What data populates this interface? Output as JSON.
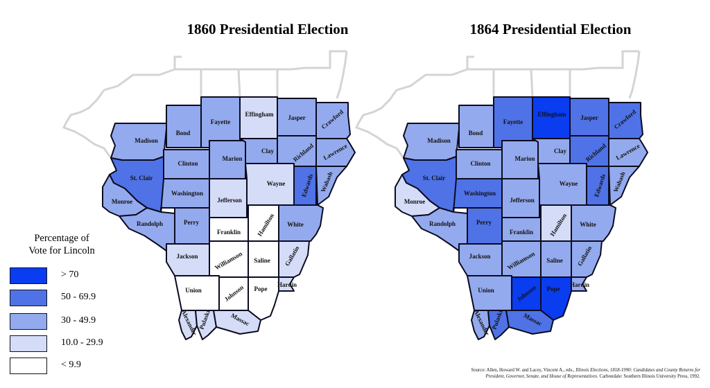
{
  "titles": {
    "left": "1860 Presidential Election",
    "right": "1864 Presidential Election"
  },
  "legend": {
    "title_line1": "Percentage of",
    "title_line2": "Vote for Lincoln",
    "classes": [
      {
        "label": "> 70",
        "color": "#0a3cf0"
      },
      {
        "label": "50 - 69.9",
        "color": "#4f72e6"
      },
      {
        "label": "30 - 49.9",
        "color": "#94aaee"
      },
      {
        "label": "10.0 - 29.9",
        "color": "#d4dcf8"
      },
      {
        "label": "< 9.9",
        "color": "#ffffff"
      }
    ]
  },
  "counties": [
    "Madison",
    "Bond",
    "Fayette",
    "Effingham",
    "Jasper",
    "Crawford",
    "Clinton",
    "Marion",
    "Clay",
    "Richland",
    "Lawrence",
    "St. Clair",
    "Washington",
    "Jefferson",
    "Wayne",
    "Edwards",
    "Wabash",
    "Monroe",
    "Randolph",
    "Perry",
    "Franklin",
    "Hamilton",
    "White",
    "Jackson",
    "Williamson",
    "Saline",
    "Gallatin",
    "Union",
    "Johnson",
    "Pope",
    "Hardin",
    "Alexander",
    "Pulaski",
    "Massac"
  ],
  "election_1860": {
    "Madison": "30 - 49.9",
    "Bond": "30 - 49.9",
    "Fayette": "30 - 49.9",
    "Effingham": "10.0 - 29.9",
    "Jasper": "30 - 49.9",
    "Crawford": "30 - 49.9",
    "Clinton": "30 - 49.9",
    "Marion": "30 - 49.9",
    "Clay": "30 - 49.9",
    "Richland": "30 - 49.9",
    "Lawrence": "30 - 49.9",
    "St. Clair": "50 - 69.9",
    "Washington": "30 - 49.9",
    "Jefferson": "10.0 - 29.9",
    "Wayne": "10.0 - 29.9",
    "Edwards": "50 - 69.9",
    "Wabash": "30 - 49.9",
    "Monroe": "30 - 49.9",
    "Randolph": "30 - 49.9",
    "Perry": "30 - 49.9",
    "Franklin": "< 9.9",
    "Hamilton": "< 9.9",
    "White": "30 - 49.9",
    "Jackson": "10.0 - 29.9",
    "Williamson": "< 9.9",
    "Saline": "< 9.9",
    "Gallatin": "10.0 - 29.9",
    "Union": "< 9.9",
    "Johnson": "< 9.9",
    "Pope": "< 9.9",
    "Hardin": "10.0 - 29.9",
    "Alexander": "10.0 - 29.9",
    "Pulaski": "10.0 - 29.9",
    "Massac": "10.0 - 29.9"
  },
  "election_1864": {
    "Madison": "30 - 49.9",
    "Bond": "30 - 49.9",
    "Fayette": "50 - 69.9",
    "Effingham": "> 70",
    "Jasper": "50 - 69.9",
    "Crawford": "50 - 69.9",
    "Clinton": "30 - 49.9",
    "Marion": "30 - 49.9",
    "Clay": "30 - 49.9",
    "Richland": "50 - 69.9",
    "Lawrence": "30 - 49.9",
    "St. Clair": "50 - 69.9",
    "Washington": "50 - 69.9",
    "Jefferson": "30 - 49.9",
    "Wayne": "30 - 49.9",
    "Edwards": "50 - 69.9",
    "Wabash": "30 - 49.9",
    "Monroe": "10.0 - 29.9",
    "Randolph": "30 - 49.9",
    "Perry": "50 - 69.9",
    "Franklin": "30 - 49.9",
    "Hamilton": "10.0 - 29.9",
    "White": "30 - 49.9",
    "Jackson": "30 - 49.9",
    "Williamson": "30 - 49.9",
    "Saline": "30 - 49.9",
    "Gallatin": "30 - 49.9",
    "Union": "30 - 49.9",
    "Johnson": "> 70",
    "Pope": "> 70",
    "Hardin": "30 - 49.9",
    "Alexander": "30 - 49.9",
    "Pulaski": "50 - 69.9",
    "Massac": "50 - 69.9"
  },
  "source": {
    "line1_plain": "Source: Allen, Howard W. and Lacey, Vincent A., eds., ",
    "line1_italic": "Illinois Elections, 1818-1990: Candidates and County Returns for",
    "line2_italic": "President, Governor, Senate, and House of Representatives",
    "line2_plain": ". Carbondale: Southern Illinois University Press, 1992."
  }
}
